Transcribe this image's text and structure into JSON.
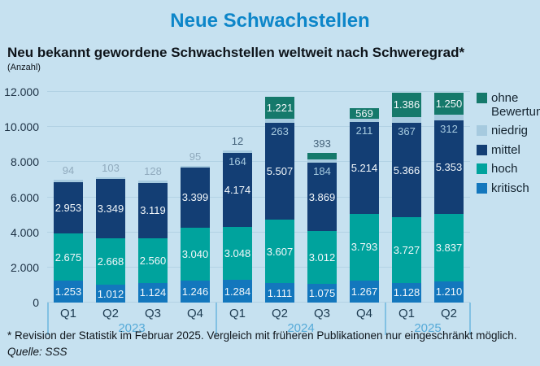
{
  "page": {
    "title": "Neue Schwachstellen",
    "subtitle": "Neu bekannt gewordene Schwachstellen weltweit nach Schweregrad*",
    "unit_label": "(Anzahl)",
    "footnote": "* Revision der Statistik im Februar 2025. Vergleich mit früheren Publikationen nur eingeschränkt möglich.",
    "source": "Quelle: SSS"
  },
  "colors": {
    "background": "#c6e1f0",
    "title_text": "#0d86c9",
    "body_text": "#121a20",
    "kritisch": "#1377bd",
    "hoch": "#00a39d",
    "mittel": "#133e74",
    "niedrig": "#a6cadf",
    "ohne_bewertung": "#15796b",
    "gridline": "#b2d2e4",
    "axis_text": "#1d3144",
    "quarter_text": "#1c3a50",
    "year_text": "#55aad8",
    "separator": "#82c1e3",
    "outside_label_light": "#90aabd",
    "outside_label_dark": "#44627a",
    "inside_label": "#f2f7fa"
  },
  "chart_data": {
    "type": "bar",
    "stacked": true,
    "title": "Neue Schwachstellen",
    "ylabel": "(Anzahl)",
    "ylim": [
      0,
      12000
    ],
    "ytick_step": 2000,
    "grid": true,
    "legend_position": "right",
    "legend": [
      {
        "label": "ohne Bewertung",
        "key": "ohne_bewertung"
      },
      {
        "label": "niedrig",
        "key": "niedrig"
      },
      {
        "label": "mittel",
        "key": "mittel"
      },
      {
        "label": "hoch",
        "key": "hoch"
      },
      {
        "label": "kritisch",
        "key": "kritisch"
      }
    ],
    "groups": [
      {
        "year": "2023",
        "bars": [
          {
            "quarter": "Q1",
            "kritisch": 1253,
            "hoch": 2675,
            "mittel": 2953,
            "niedrig": 94,
            "ohne_bewertung": null
          },
          {
            "quarter": "Q2",
            "kritisch": 1012,
            "hoch": 2668,
            "mittel": 3349,
            "niedrig": 103,
            "ohne_bewertung": null
          },
          {
            "quarter": "Q3",
            "kritisch": 1124,
            "hoch": 2560,
            "mittel": 3119,
            "niedrig": 128,
            "ohne_bewertung": null
          },
          {
            "quarter": "Q4",
            "kritisch": 1246,
            "hoch": 3040,
            "mittel": 3399,
            "niedrig": 95,
            "ohne_bewertung": null
          }
        ]
      },
      {
        "year": "2024",
        "bars": [
          {
            "quarter": "Q1",
            "kritisch": 1284,
            "hoch": 3048,
            "mittel": 4174,
            "niedrig": 164,
            "ohne_bewertung": 12
          },
          {
            "quarter": "Q2",
            "kritisch": 1111,
            "hoch": 3607,
            "mittel": 5507,
            "niedrig": 263,
            "ohne_bewertung": 1221
          },
          {
            "quarter": "Q3",
            "kritisch": 1075,
            "hoch": 3012,
            "mittel": 3869,
            "niedrig": 184,
            "ohne_bewertung": 393
          },
          {
            "quarter": "Q4",
            "kritisch": 1267,
            "hoch": 3793,
            "mittel": 5214,
            "niedrig": 211,
            "ohne_bewertung": 569
          }
        ]
      },
      {
        "year": "2025",
        "bars": [
          {
            "quarter": "Q1",
            "kritisch": 1128,
            "hoch": 3727,
            "mittel": 5366,
            "niedrig": 367,
            "ohne_bewertung": 1386
          },
          {
            "quarter": "Q2",
            "kritisch": 1210,
            "hoch": 3837,
            "mittel": 5353,
            "niedrig": 312,
            "ohne_bewertung": 1250
          }
        ]
      }
    ]
  }
}
